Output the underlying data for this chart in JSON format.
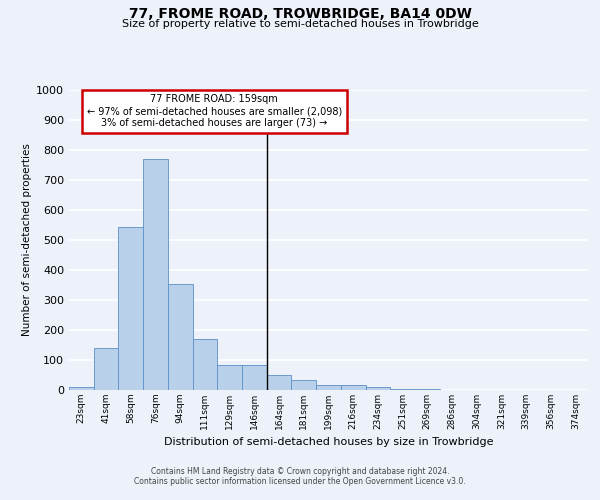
{
  "title": "77, FROME ROAD, TROWBRIDGE, BA14 0DW",
  "subtitle": "Size of property relative to semi-detached houses in Trowbridge",
  "xlabel": "Distribution of semi-detached houses by size in Trowbridge",
  "ylabel": "Number of semi-detached properties",
  "bar_labels": [
    "23sqm",
    "41sqm",
    "58sqm",
    "76sqm",
    "94sqm",
    "111sqm",
    "129sqm",
    "146sqm",
    "164sqm",
    "181sqm",
    "199sqm",
    "216sqm",
    "234sqm",
    "251sqm",
    "269sqm",
    "286sqm",
    "304sqm",
    "321sqm",
    "339sqm",
    "356sqm",
    "374sqm"
  ],
  "bar_values": [
    10,
    140,
    545,
    770,
    355,
    170,
    83,
    83,
    50,
    35,
    18,
    18,
    9,
    5,
    5,
    1,
    0,
    0,
    0,
    0,
    0
  ],
  "bar_color": "#b8d0ea",
  "bar_edge_color": "#5b8fc9",
  "subject_bar_index": 8,
  "annotation_text_line1": "77 FROME ROAD: 159sqm",
  "annotation_text_line2": "← 97% of semi-detached houses are smaller (2,098)",
  "annotation_text_line3": "3% of semi-detached houses are larger (73) →",
  "annotation_box_facecolor": "#ffffff",
  "annotation_box_edgecolor": "#cc0000",
  "ylim": [
    0,
    1000
  ],
  "yticks": [
    0,
    100,
    200,
    300,
    400,
    500,
    600,
    700,
    800,
    900,
    1000
  ],
  "background_color": "#edf1f9",
  "grid_color": "#ffffff",
  "footer_line1": "Contains HM Land Registry data © Crown copyright and database right 2024.",
  "footer_line2": "Contains public sector information licensed under the Open Government Licence v3.0."
}
